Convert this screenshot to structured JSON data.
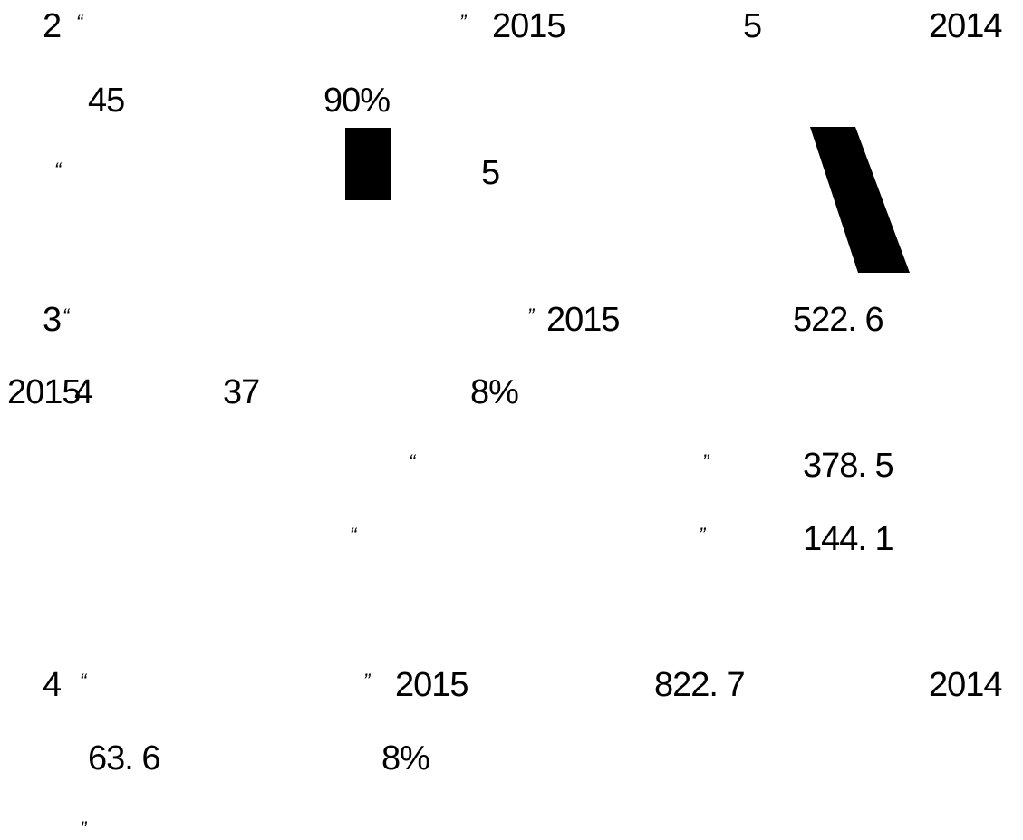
{
  "lines": [
    {
      "fragments": [
        "2",
        "“",
        "”",
        "2015",
        "5",
        "2014"
      ]
    },
    {
      "fragments": [
        "45",
        "90%"
      ]
    },
    {
      "fragments": [
        "“",
        "5"
      ]
    },
    {
      "fragments": [
        "3",
        "“",
        "”",
        "2015",
        "522. 6"
      ]
    },
    {
      "fragments": [
        "2015",
        "4",
        "37",
        "8%"
      ]
    },
    {
      "fragments": [
        "“",
        "”",
        "378. 5"
      ]
    },
    {
      "fragments": [
        "“",
        "”",
        "144. 1"
      ]
    },
    {
      "fragments": [
        "4",
        "“",
        "”",
        "2015",
        "822. 7",
        "2014"
      ]
    },
    {
      "fragments": [
        "63. 6",
        "8%"
      ]
    },
    {
      "fragments": [
        "”"
      ]
    }
  ],
  "colors": {
    "background": "#ffffff",
    "text": "#000000"
  }
}
